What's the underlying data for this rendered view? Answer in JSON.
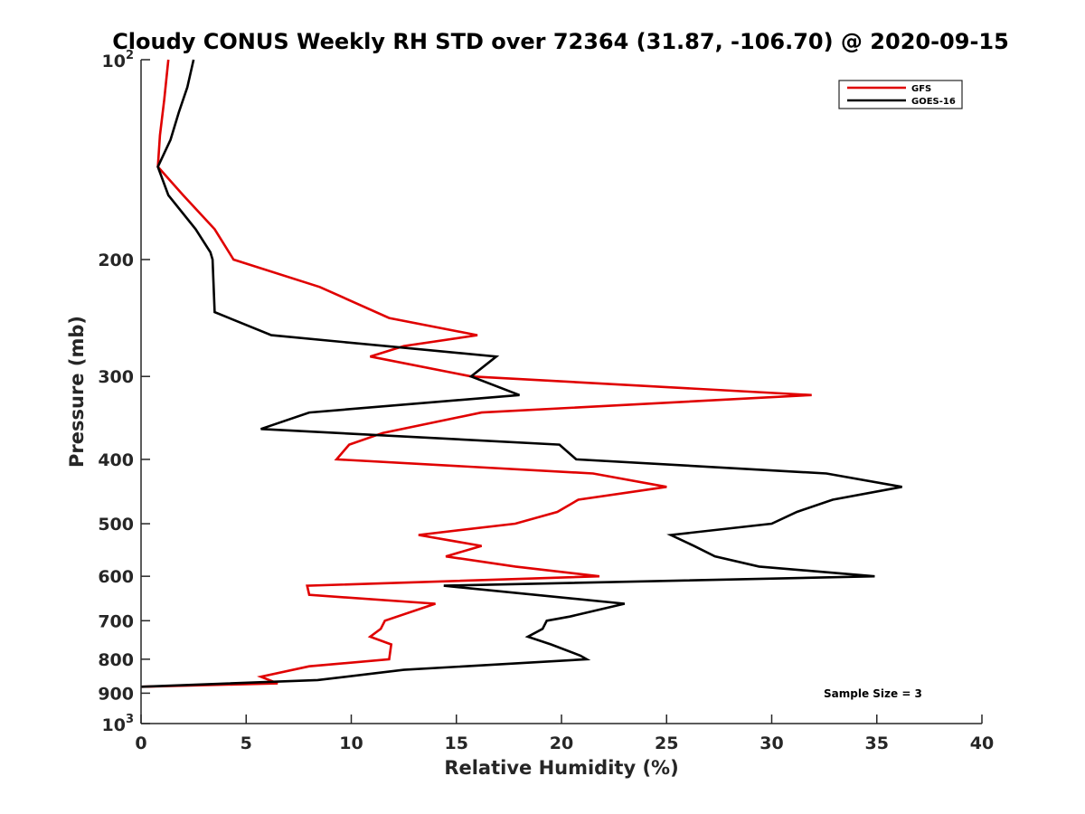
{
  "chart_data": {
    "type": "line",
    "title": "Cloudy CONUS Weekly RH STD over 72364 (31.87, -106.70) @ 2020-09-15",
    "xlabel": "Relative Humidity (%)",
    "ylabel": "Pressure (mb)",
    "xlim": [
      0,
      40
    ],
    "ylim": [
      100,
      1000
    ],
    "y_scale": "log",
    "y_reversed": true,
    "grid": false,
    "legend_position": "top-right",
    "x_ticks": [
      "0",
      "5",
      "10",
      "15",
      "20",
      "25",
      "30",
      "35",
      "40"
    ],
    "y_ticks": [
      {
        "value": 100,
        "base": "10",
        "exp": "2"
      },
      {
        "value": 200,
        "label": "200"
      },
      {
        "value": 300,
        "label": "300"
      },
      {
        "value": 400,
        "label": "400"
      },
      {
        "value": 500,
        "label": "500"
      },
      {
        "value": 600,
        "label": "600"
      },
      {
        "value": 700,
        "label": "700"
      },
      {
        "value": 800,
        "label": "800"
      },
      {
        "value": 900,
        "label": "900"
      },
      {
        "value": 1000,
        "base": "10",
        "exp": "3"
      }
    ],
    "annotation": "Sample Size = 3",
    "series": [
      {
        "name": "GFS",
        "color": "#e00000",
        "x": [
          1.3,
          1.1,
          0.9,
          0.8,
          2.0,
          3.5,
          4.4,
          8.5,
          11.8,
          16.0,
          12.5,
          10.9,
          15.7,
          31.9,
          16.2,
          11.5,
          9.9,
          9.3,
          21.5,
          25.0,
          20.8,
          19.8,
          17.8,
          13.2,
          16.2,
          14.5,
          17.8,
          21.8,
          7.9,
          8.0,
          14.0,
          11.6,
          11.4,
          10.9,
          11.9,
          11.8,
          8.0,
          5.7,
          6.5,
          0.0
        ],
        "y": [
          100,
          115,
          130,
          145,
          160,
          180,
          200,
          220,
          245,
          260,
          270,
          280,
          300,
          320,
          340,
          365,
          380,
          400,
          420,
          440,
          460,
          480,
          500,
          520,
          540,
          560,
          580,
          600,
          620,
          640,
          660,
          700,
          720,
          740,
          760,
          800,
          820,
          850,
          870,
          880
        ]
      },
      {
        "name": "GOES-16",
        "color": "#000000",
        "x": [
          2.5,
          2.2,
          1.8,
          1.4,
          0.8,
          1.3,
          2.6,
          3.3,
          3.4,
          3.5,
          6.2,
          16.9,
          15.7,
          18.0,
          8.0,
          5.7,
          19.9,
          20.7,
          32.6,
          36.2,
          32.9,
          31.2,
          30.0,
          25.2,
          26.3,
          27.3,
          29.4,
          34.9,
          14.4,
          23.0,
          20.4,
          19.3,
          19.1,
          18.4,
          19.5,
          20.9,
          21.2,
          12.5,
          8.4,
          0.0
        ],
        "y": [
          100,
          110,
          120,
          132,
          145,
          160,
          180,
          195,
          200,
          240,
          260,
          280,
          300,
          320,
          340,
          360,
          380,
          400,
          420,
          440,
          460,
          480,
          500,
          520,
          540,
          560,
          580,
          600,
          620,
          660,
          690,
          700,
          720,
          740,
          760,
          790,
          800,
          830,
          860,
          880
        ]
      }
    ]
  }
}
